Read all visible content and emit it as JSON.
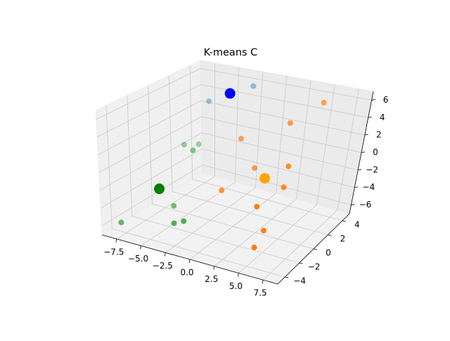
{
  "chart_data": {
    "type": "scatter",
    "projection": "3d",
    "title": "K-means C",
    "xlabel": "",
    "ylabel": "",
    "zlabel": "",
    "xlim": [
      -9,
      9
    ],
    "ylim": [
      -5,
      5
    ],
    "zlim": [
      -7,
      7
    ],
    "grid": true,
    "x_ticks": [
      "−7.5",
      "−5.0",
      "−2.5",
      "0.0",
      "2.5",
      "5.0",
      "7.5"
    ],
    "x_tick_values": [
      -7.5,
      -5.0,
      -2.5,
      0.0,
      2.5,
      5.0,
      7.5
    ],
    "y_ticks": [
      "−4",
      "−2",
      "0",
      "2",
      "4"
    ],
    "y_tick_values": [
      -4,
      -2,
      0,
      2,
      4
    ],
    "z_ticks": [
      "−6",
      "−4",
      "−2",
      "0",
      "2",
      "4",
      "6"
    ],
    "z_tick_values": [
      -6,
      -4,
      -2,
      0,
      2,
      4,
      6
    ],
    "series": [
      {
        "color": "#1f77b4",
        "points": [
          [
            -6.5,
            3.5,
            3.5
          ],
          [
            -5.0,
            4.0,
            4.5
          ],
          [
            -3.0,
            4.6,
            5.4
          ]
        ]
      },
      {
        "color": "#ff7f0e",
        "points": [
          [
            5.0,
            4.0,
            5.5
          ],
          [
            4.0,
            1.5,
            4.5
          ],
          [
            0.0,
            0.5,
            2.5
          ],
          [
            5.5,
            0.0,
            1.0
          ],
          [
            2.0,
            0.0,
            0.0
          ],
          [
            6.0,
            -1.0,
            -0.5
          ],
          [
            0.5,
            -2.0,
            -1.5
          ],
          [
            6.0,
            -4.2,
            -0.5
          ],
          [
            7.0,
            -4.5,
            -2.5
          ],
          [
            6.5,
            -5.0,
            -4.0
          ]
        ]
      },
      {
        "color": "#2ca02c",
        "points": [
          [
            -6.5,
            2.5,
            -1.0
          ],
          [
            -7.0,
            1.5,
            -0.5
          ],
          [
            -5.0,
            0.5,
            0.0
          ],
          [
            -5.0,
            -1.5,
            -5.0
          ],
          [
            -8.0,
            -4.0,
            -6.0
          ],
          [
            -3.0,
            -3.5,
            -5.0
          ],
          [
            -2.0,
            -3.5,
            -4.5
          ]
        ]
      }
    ],
    "centroids": [
      {
        "color": "#0000ff",
        "point": [
          -4.8,
          4.0,
          4.5
        ]
      },
      {
        "color": "#ffa500",
        "point": [
          4.0,
          -1.0,
          0.0
        ]
      },
      {
        "color": "#008000",
        "point": [
          -6.0,
          -2.0,
          -3.0
        ]
      }
    ]
  }
}
